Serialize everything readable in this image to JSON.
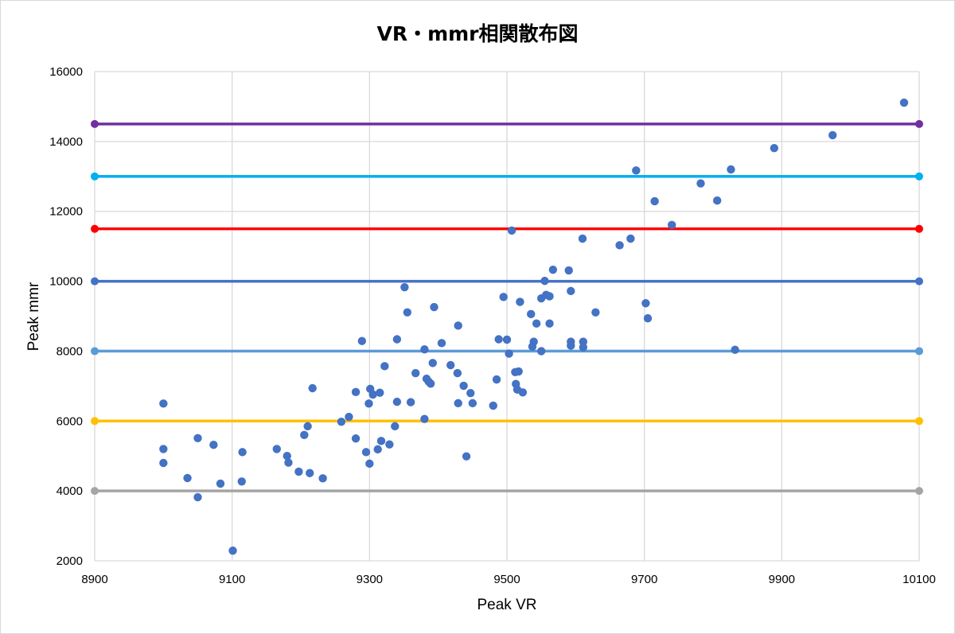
{
  "chart_data": {
    "type": "scatter",
    "title": "VR・mmr相関散布図",
    "xlabel": "Peak VR",
    "ylabel": "Peak mmr",
    "xlim": [
      8900,
      10100
    ],
    "ylim": [
      2000,
      16000
    ],
    "xticks": [
      8900,
      9100,
      9300,
      9500,
      9700,
      9900,
      10100
    ],
    "yticks": [
      2000,
      4000,
      6000,
      8000,
      10000,
      12000,
      14000,
      16000
    ],
    "grid": true,
    "colors": {
      "points": "#4472C4",
      "grid": "#d9d9d9"
    },
    "reference_lines": [
      {
        "y": 4000,
        "color": "#A5A5A5"
      },
      {
        "y": 6000,
        "color": "#FFC000"
      },
      {
        "y": 8000,
        "color": "#5B9BD5"
      },
      {
        "y": 10000,
        "color": "#4472C4"
      },
      {
        "y": 11500,
        "color": "#FF0000"
      },
      {
        "y": 13000,
        "color": "#00B0F0"
      },
      {
        "y": 14500,
        "color": "#7030A0"
      }
    ],
    "points": [
      {
        "x": 9000,
        "y": 6500
      },
      {
        "x": 9000,
        "y": 5200
      },
      {
        "x": 9000,
        "y": 4800
      },
      {
        "x": 9035,
        "y": 4370
      },
      {
        "x": 9050,
        "y": 5510
      },
      {
        "x": 9050,
        "y": 3820
      },
      {
        "x": 9073,
        "y": 5320
      },
      {
        "x": 9083,
        "y": 4210
      },
      {
        "x": 9101,
        "y": 2290
      },
      {
        "x": 9115,
        "y": 5110
      },
      {
        "x": 9114,
        "y": 4270
      },
      {
        "x": 9165,
        "y": 5200
      },
      {
        "x": 9180,
        "y": 5000
      },
      {
        "x": 9182,
        "y": 4810
      },
      {
        "x": 9197,
        "y": 4550
      },
      {
        "x": 9205,
        "y": 5600
      },
      {
        "x": 9210,
        "y": 5850
      },
      {
        "x": 9213,
        "y": 4510
      },
      {
        "x": 9217,
        "y": 6940
      },
      {
        "x": 9232,
        "y": 4360
      },
      {
        "x": 9259,
        "y": 5980
      },
      {
        "x": 9270,
        "y": 6120
      },
      {
        "x": 9280,
        "y": 6830
      },
      {
        "x": 9280,
        "y": 5500
      },
      {
        "x": 9289,
        "y": 8290
      },
      {
        "x": 9295,
        "y": 5110
      },
      {
        "x": 9299,
        "y": 6500
      },
      {
        "x": 9300,
        "y": 4780
      },
      {
        "x": 9301,
        "y": 6920
      },
      {
        "x": 9305,
        "y": 6760
      },
      {
        "x": 9312,
        "y": 5190
      },
      {
        "x": 9315,
        "y": 6810
      },
      {
        "x": 9317,
        "y": 5430
      },
      {
        "x": 9322,
        "y": 7570
      },
      {
        "x": 9329,
        "y": 5330
      },
      {
        "x": 9337,
        "y": 5850
      },
      {
        "x": 9340,
        "y": 8340
      },
      {
        "x": 9340,
        "y": 6550
      },
      {
        "x": 9351,
        "y": 9830
      },
      {
        "x": 9355,
        "y": 9110
      },
      {
        "x": 9360,
        "y": 6540
      },
      {
        "x": 9367,
        "y": 7370
      },
      {
        "x": 9380,
        "y": 8050
      },
      {
        "x": 9380,
        "y": 6060
      },
      {
        "x": 9383,
        "y": 7210
      },
      {
        "x": 9386,
        "y": 7130
      },
      {
        "x": 9389,
        "y": 7070
      },
      {
        "x": 9392,
        "y": 7660
      },
      {
        "x": 9394,
        "y": 9260
      },
      {
        "x": 9405,
        "y": 8230
      },
      {
        "x": 9418,
        "y": 7600
      },
      {
        "x": 9428,
        "y": 7370
      },
      {
        "x": 9429,
        "y": 8730
      },
      {
        "x": 9429,
        "y": 6510
      },
      {
        "x": 9437,
        "y": 7010
      },
      {
        "x": 9441,
        "y": 4990
      },
      {
        "x": 9447,
        "y": 6800
      },
      {
        "x": 9450,
        "y": 6510
      },
      {
        "x": 9480,
        "y": 6440
      },
      {
        "x": 9485,
        "y": 7190
      },
      {
        "x": 9488,
        "y": 8340
      },
      {
        "x": 9495,
        "y": 9550
      },
      {
        "x": 9500,
        "y": 8330
      },
      {
        "x": 9503,
        "y": 7930
      },
      {
        "x": 9507,
        "y": 11450
      },
      {
        "x": 9512,
        "y": 7400
      },
      {
        "x": 9513,
        "y": 7060
      },
      {
        "x": 9515,
        "y": 6900
      },
      {
        "x": 9517,
        "y": 7420
      },
      {
        "x": 9519,
        "y": 9410
      },
      {
        "x": 9523,
        "y": 6820
      },
      {
        "x": 9535,
        "y": 9060
      },
      {
        "x": 9537,
        "y": 8130
      },
      {
        "x": 9539,
        "y": 8270
      },
      {
        "x": 9543,
        "y": 8790
      },
      {
        "x": 9550,
        "y": 9510
      },
      {
        "x": 9550,
        "y": 8000
      },
      {
        "x": 9555,
        "y": 10010
      },
      {
        "x": 9557,
        "y": 9610
      },
      {
        "x": 9562,
        "y": 9570
      },
      {
        "x": 9562,
        "y": 8790
      },
      {
        "x": 9567,
        "y": 10330
      },
      {
        "x": 9590,
        "y": 10310
      },
      {
        "x": 9593,
        "y": 9720
      },
      {
        "x": 9593,
        "y": 8270
      },
      {
        "x": 9593,
        "y": 8160
      },
      {
        "x": 9610,
        "y": 11220
      },
      {
        "x": 9611,
        "y": 8270
      },
      {
        "x": 9611,
        "y": 8110
      },
      {
        "x": 9629,
        "y": 9110
      },
      {
        "x": 9664,
        "y": 11030
      },
      {
        "x": 9680,
        "y": 11220
      },
      {
        "x": 9688,
        "y": 13170
      },
      {
        "x": 9702,
        "y": 9370
      },
      {
        "x": 9705,
        "y": 8940
      },
      {
        "x": 9715,
        "y": 12290
      },
      {
        "x": 9740,
        "y": 11610
      },
      {
        "x": 9782,
        "y": 12800
      },
      {
        "x": 9806,
        "y": 12310
      },
      {
        "x": 9826,
        "y": 13200
      },
      {
        "x": 9832,
        "y": 8040
      },
      {
        "x": 9889,
        "y": 13810
      },
      {
        "x": 9974,
        "y": 14180
      },
      {
        "x": 10078,
        "y": 15110
      }
    ]
  }
}
